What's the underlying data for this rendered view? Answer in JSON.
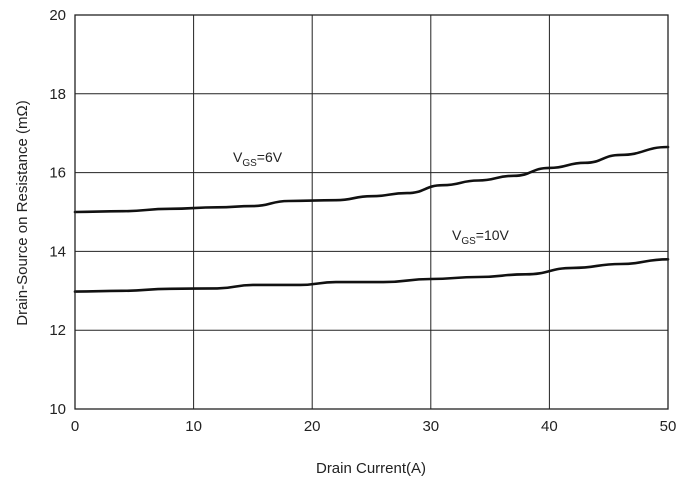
{
  "chart_data": {
    "type": "line",
    "title": "",
    "xlabel": "Drain Current(A)",
    "ylabel": "Drain-Source on Resistance (mΩ)",
    "xlim": [
      0,
      50
    ],
    "ylim": [
      10,
      20
    ],
    "x_ticks": [
      0,
      10,
      20,
      30,
      40,
      50
    ],
    "y_ticks": [
      10,
      12,
      14,
      16,
      18,
      20
    ],
    "x_tick_labels": [
      "0",
      "10",
      "20",
      "30",
      "40",
      "50"
    ],
    "y_tick_labels": [
      "10",
      "12",
      "14",
      "16",
      "18",
      "20"
    ],
    "grid": true,
    "legend": "none",
    "series": [
      {
        "label_main": "V",
        "label_sub": "GS",
        "label_rest": "=6V",
        "color": "#111111",
        "x": [
          0,
          4,
          8,
          12,
          15,
          18,
          22,
          25,
          28,
          31,
          34,
          37,
          40,
          43,
          46,
          50
        ],
        "y": [
          15.0,
          15.02,
          15.08,
          15.12,
          15.15,
          15.28,
          15.3,
          15.4,
          15.48,
          15.68,
          15.8,
          15.92,
          16.12,
          16.25,
          16.45,
          16.65
        ]
      },
      {
        "label_main": "V",
        "label_sub": "GS",
        "label_rest": "=10V",
        "color": "#111111",
        "x": [
          0,
          4,
          8,
          12,
          15,
          19,
          22,
          26,
          30,
          34,
          38,
          42,
          46,
          50
        ],
        "y": [
          12.98,
          13.0,
          13.05,
          13.06,
          13.15,
          13.15,
          13.22,
          13.22,
          13.3,
          13.35,
          13.42,
          13.58,
          13.68,
          13.8
        ]
      }
    ]
  }
}
